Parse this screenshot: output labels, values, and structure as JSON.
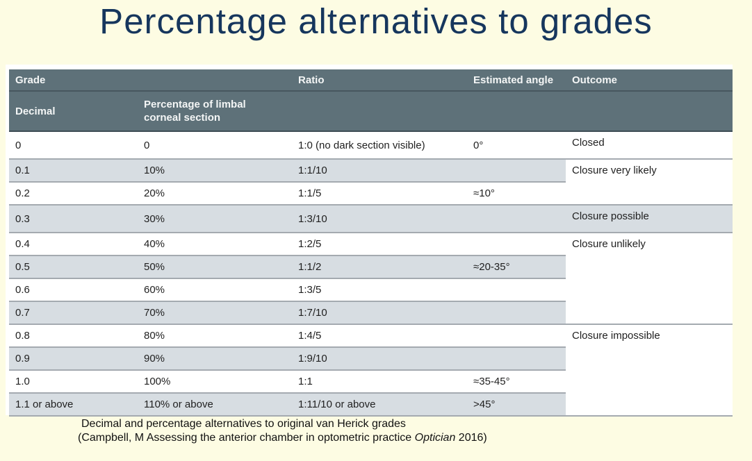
{
  "title": "Percentage alternatives to grades",
  "table": {
    "headers": {
      "grade": "Grade",
      "decimal": "Decimal",
      "percentage_of_limbal": "Percentage of limbal corneal section",
      "ratio": "Ratio",
      "estimated_angle": "Estimated angle",
      "outcome": "Outcome"
    },
    "rows": [
      {
        "decimal": "0",
        "percentage": "0",
        "ratio": "1:0 (no dark section visible)",
        "angle": "0°",
        "outcome": "Closed"
      },
      {
        "decimal": "0.1",
        "percentage": "10%",
        "ratio": "1:1/10",
        "angle": "",
        "outcome": "Closure very likely"
      },
      {
        "decimal": "0.2",
        "percentage": "20%",
        "ratio": "1:1/5",
        "angle": "≈10°",
        "outcome": ""
      },
      {
        "decimal": "0.3",
        "percentage": "30%",
        "ratio": "1:3/10",
        "angle": "",
        "outcome": "Closure possible"
      },
      {
        "decimal": "0.4",
        "percentage": "40%",
        "ratio": "1:2/5",
        "angle": "",
        "outcome": "Closure unlikely"
      },
      {
        "decimal": "0.5",
        "percentage": "50%",
        "ratio": "1:1/2",
        "angle": "≈20-35°",
        "outcome": ""
      },
      {
        "decimal": "0.6",
        "percentage": "60%",
        "ratio": "1:3/5",
        "angle": "",
        "outcome": ""
      },
      {
        "decimal": "0.7",
        "percentage": "70%",
        "ratio": "1:7/10",
        "angle": "",
        "outcome": ""
      },
      {
        "decimal": "0.8",
        "percentage": "80%",
        "ratio": "1:4/5",
        "angle": "",
        "outcome": "Closure impossible"
      },
      {
        "decimal": "0.9",
        "percentage": "90%",
        "ratio": "1:9/10",
        "angle": "",
        "outcome": ""
      },
      {
        "decimal": "1.0",
        "percentage": "100%",
        "ratio": "1:1",
        "angle": "≈35-45°",
        "outcome": ""
      },
      {
        "decimal": "1.1 or above",
        "percentage": "110% or above",
        "ratio": "1:11/10 or above",
        "angle": ">45°",
        "outcome": ""
      }
    ]
  },
  "caption": {
    "line1": "Decimal and percentage alternatives to original van Herick grades",
    "line2_pre": "(Campbell, M Assessing the anterior chamber in optometric practice ",
    "line2_italic": "Optician",
    "line2_post": " 2016)"
  },
  "colors": {
    "slide_background": "#fdfce3",
    "title_text": "#16365d",
    "table_header_bg": "#5e7179",
    "table_header_text": "#f4f6f6",
    "row_stripe": "#d7dde2",
    "row_divider": "#a4aab0"
  }
}
